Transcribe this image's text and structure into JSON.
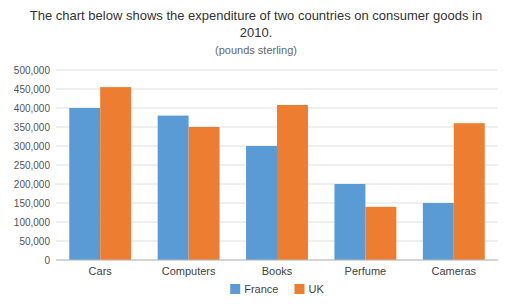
{
  "chart_data": {
    "type": "bar",
    "title": "The chart below shows the expenditure of two countries on consumer goods in 2010.",
    "subtitle": "(pounds sterling)",
    "categories": [
      "Cars",
      "Computers",
      "Books",
      "Perfume",
      "Cameras"
    ],
    "series": [
      {
        "name": "France",
        "color": "#5b9bd5",
        "values": [
          400000,
          380000,
          300000,
          200000,
          150000
        ]
      },
      {
        "name": "UK",
        "color": "#ed7d31",
        "values": [
          455000,
          350000,
          408000,
          140000,
          360000
        ]
      }
    ],
    "ylim": [
      0,
      500000
    ],
    "yticks": [
      0,
      {
        "value": 50000,
        "label": "50,000"
      },
      {
        "value": 100000,
        "label": "100,000"
      },
      {
        "value": 150000,
        "label": "150,000"
      },
      {
        "value": 200000,
        "label": "200,000"
      },
      {
        "value": 250000,
        "label": "250,000"
      },
      {
        "value": 300000,
        "label": "300,000"
      },
      {
        "value": 350000,
        "label": "350,000"
      },
      {
        "value": 400000,
        "label": "400,000"
      },
      {
        "value": 450000,
        "label": "450,000"
      },
      {
        "value": 500000,
        "label": "500,000"
      }
    ],
    "grid": true,
    "legend": "bottom"
  }
}
